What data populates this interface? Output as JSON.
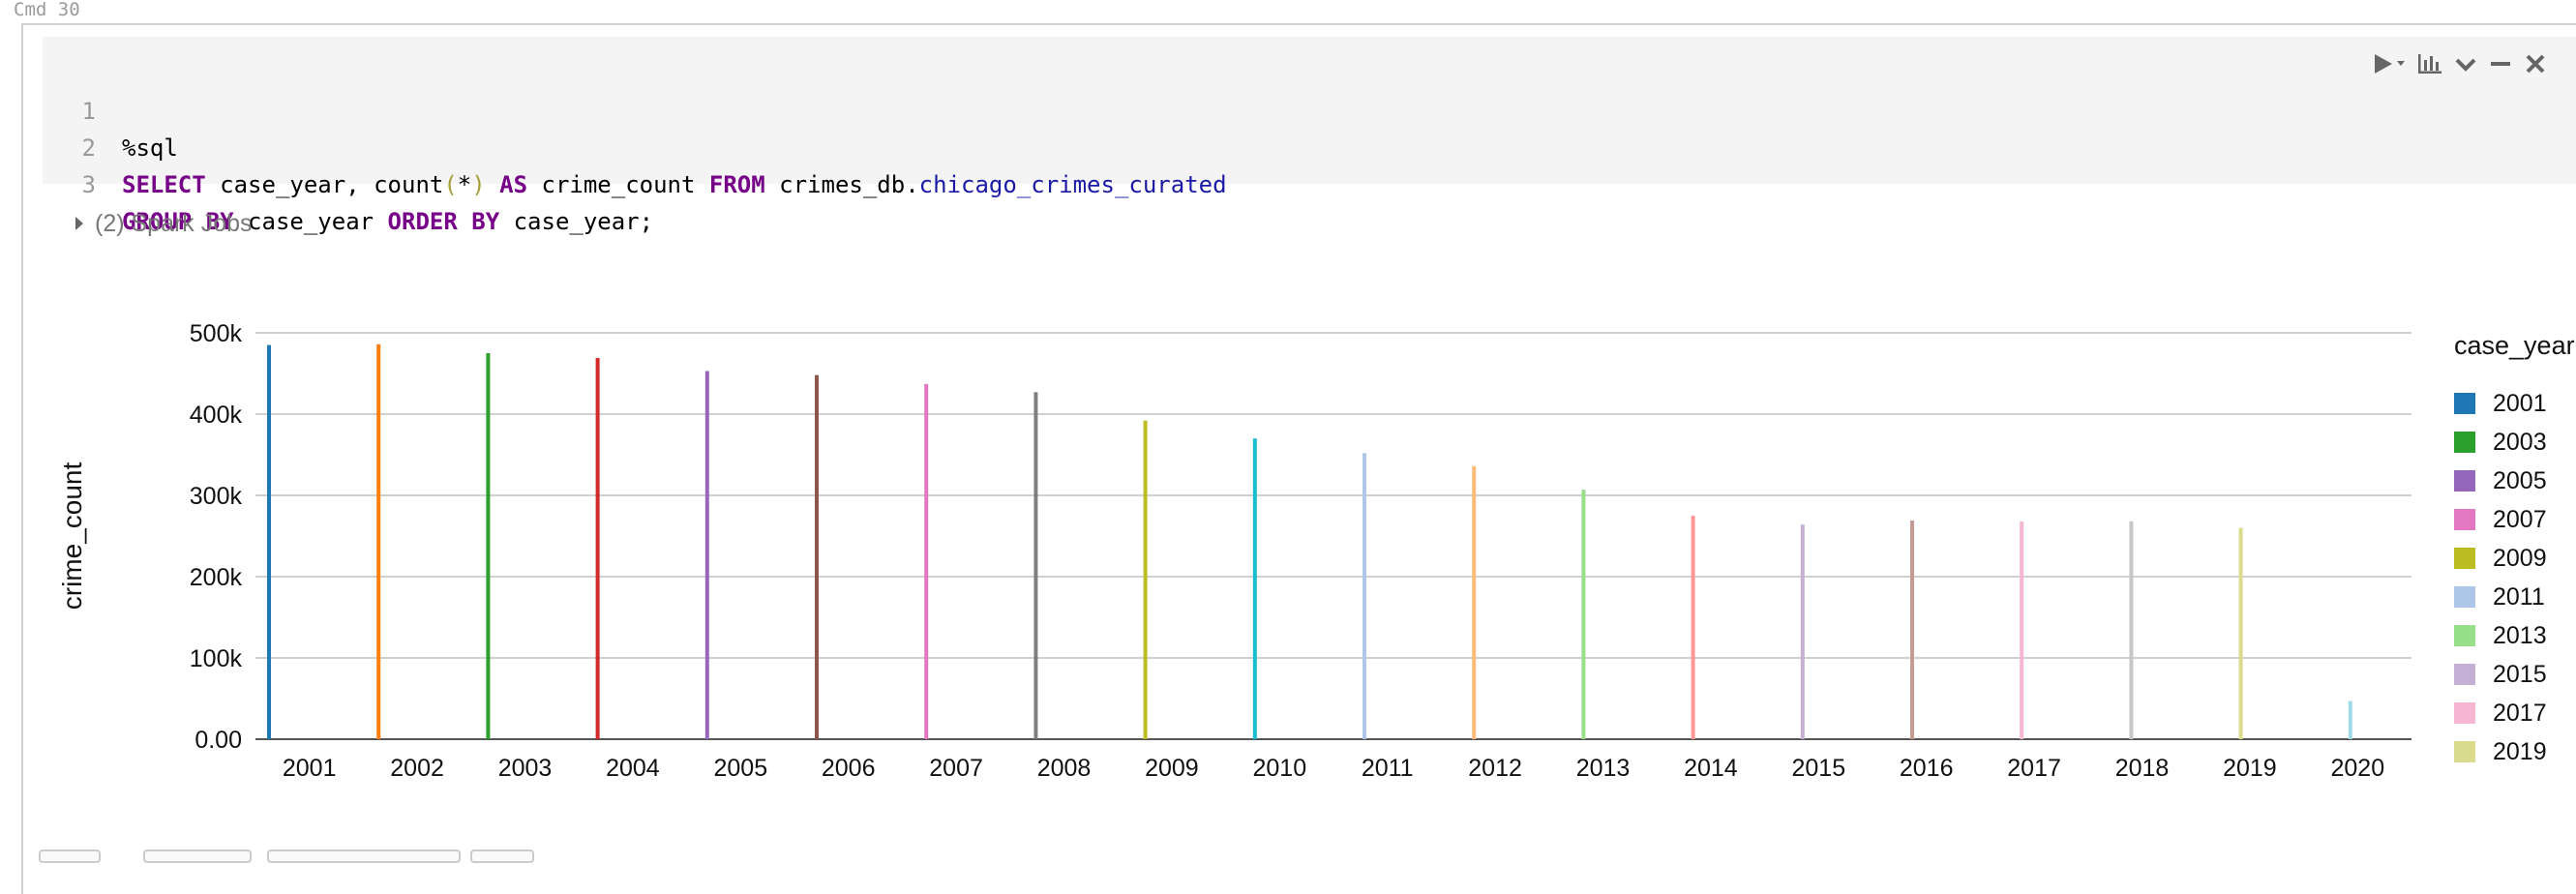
{
  "cell_label": "Cmd 30",
  "code_lines": [
    {
      "num": "1"
    },
    {
      "num": "2"
    },
    {
      "num": "3"
    }
  ],
  "code": {
    "l1": "%sql",
    "l2_kw1": "SELECT",
    "l2_a": " case_year, count",
    "l2_p1": "(",
    "l2_star": "*",
    "l2_p2": ")",
    "l2_b": " ",
    "l2_kw2": "AS",
    "l2_c": " crime_count ",
    "l2_kw3": "FROM",
    "l2_d": " crimes_db.",
    "l2_tbl": "chicago_crimes_curated",
    "l3_kw1": "GROUP BY",
    "l3_a": " case_year ",
    "l3_kw2": "ORDER BY",
    "l3_b": " case_year;"
  },
  "toolbar": {
    "run_icon": "play-icon",
    "chart_icon": "bar-chart-icon",
    "collapse_icon": "chevron-down-icon",
    "minimize_icon": "minus-icon",
    "close_icon": "close-icon"
  },
  "spark_jobs": "(2) Spark Jobs",
  "chart_data": {
    "type": "bar",
    "ylabel": "crime_count",
    "legend_title": "case_year",
    "ylim": [
      0,
      500000
    ],
    "yticks": [
      "0.00",
      "100k",
      "200k",
      "300k",
      "400k",
      "500k"
    ],
    "grid": true,
    "legend_placement": "right",
    "categories": [
      "2001",
      "2002",
      "2003",
      "2004",
      "2005",
      "2006",
      "2007",
      "2008",
      "2009",
      "2010",
      "2011",
      "2012",
      "2013",
      "2014",
      "2015",
      "2016",
      "2017",
      "2018",
      "2019",
      "2020"
    ],
    "values": [
      485000,
      486000,
      475000,
      469000,
      453000,
      448000,
      437000,
      427000,
      392000,
      370000,
      352000,
      336000,
      307000,
      275000,
      264000,
      269000,
      268000,
      268000,
      260000,
      47000
    ],
    "colors": [
      "#1f77b4",
      "#ff7f0e",
      "#2ca02c",
      "#d62728",
      "#9467bd",
      "#8c564b",
      "#e377c2",
      "#7f7f7f",
      "#bcbd22",
      "#17becf",
      "#aec7e8",
      "#ffbb78",
      "#98df8a",
      "#ff9896",
      "#c5b0d5",
      "#c49c94",
      "#f7b6d2",
      "#c7c7c7",
      "#dbdb8d",
      "#9edae5"
    ],
    "legend_items": [
      {
        "label": "2001",
        "color": "#1f77b4"
      },
      {
        "label": "2003",
        "color": "#2ca02c"
      },
      {
        "label": "2005",
        "color": "#9467bd"
      },
      {
        "label": "2007",
        "color": "#e377c2"
      },
      {
        "label": "2009",
        "color": "#bcbd22"
      },
      {
        "label": "2011",
        "color": "#aec7e8"
      },
      {
        "label": "2013",
        "color": "#98df8a"
      },
      {
        "label": "2015",
        "color": "#c5b0d5"
      },
      {
        "label": "2017",
        "color": "#f7b6d2"
      },
      {
        "label": "2019",
        "color": "#dbdb8d"
      }
    ]
  }
}
